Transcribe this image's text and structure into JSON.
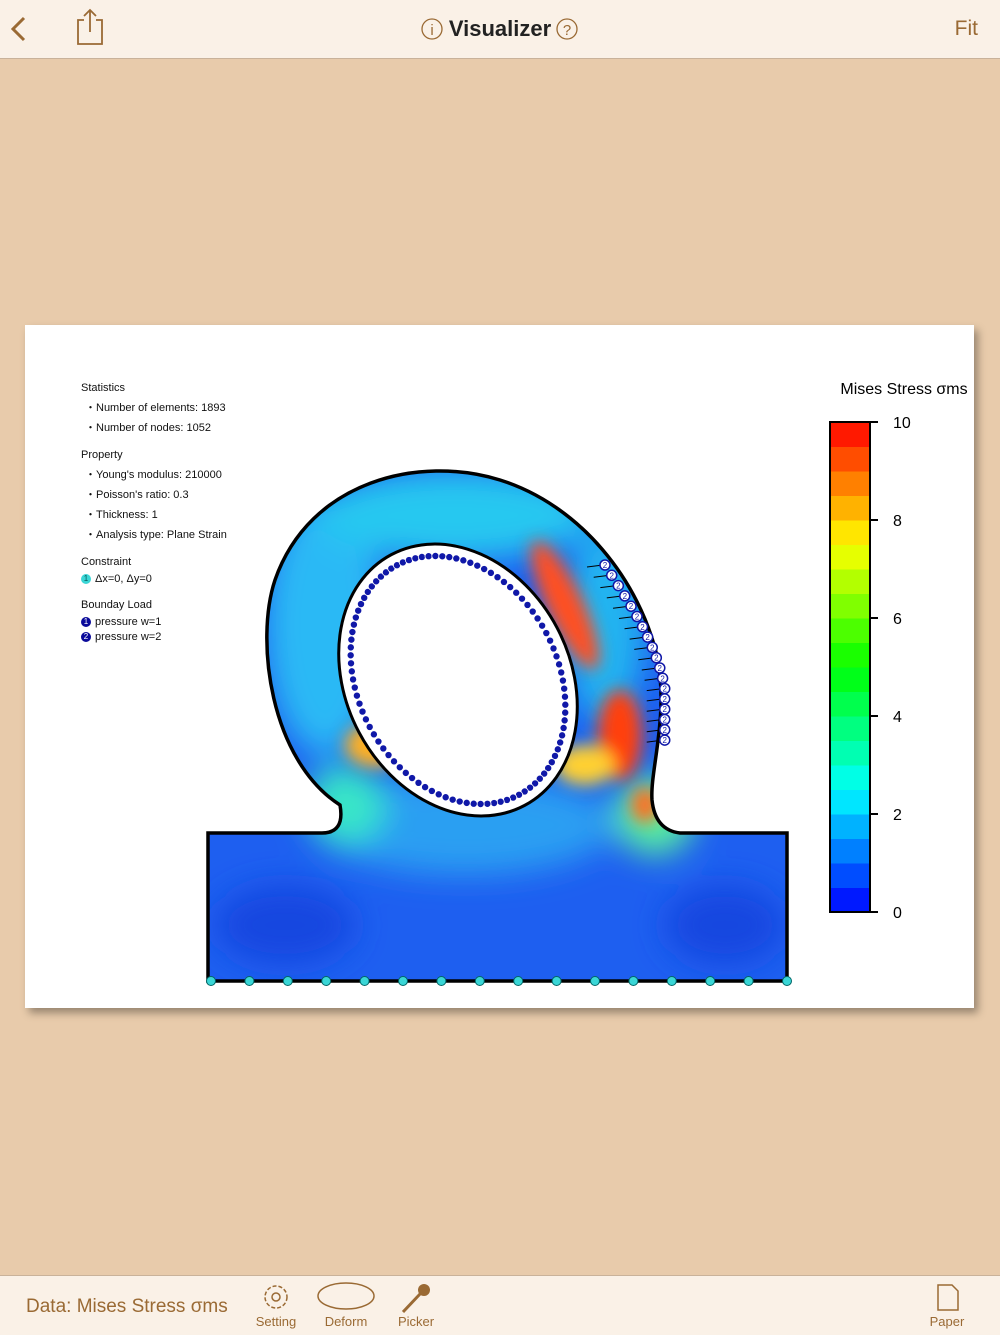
{
  "nav": {
    "title": "Visualizer",
    "right": "Fit"
  },
  "panel": {
    "statistics": {
      "heading": "Statistics",
      "items": [
        "Number of elements: 1893",
        "Number of nodes: 1052"
      ]
    },
    "property": {
      "heading": "Property",
      "items": [
        "Young's modulus: 210000",
        "Poisson's ratio: 0.3",
        "Thickness: 1",
        "Analysis type: Plane Strain"
      ]
    },
    "constraint": {
      "heading": "Constraint",
      "items": [
        {
          "badge": "1",
          "label": "Δx=0, Δy=0"
        }
      ]
    },
    "load": {
      "heading": "Bounday Load",
      "items": [
        {
          "badge": "1",
          "label": "pressure w=1"
        },
        {
          "badge": "2",
          "label": "pressure w=2"
        }
      ]
    }
  },
  "colorbar": {
    "title": "Mises Stress σms",
    "range": [
      0,
      10
    ],
    "ticks": [
      0,
      2,
      4,
      6,
      8,
      10
    ]
  },
  "toolbar": {
    "data_label": "Data: Mises Stress σms",
    "buttons": [
      "Setting",
      "Deform",
      "Picker",
      "Paper"
    ]
  }
}
